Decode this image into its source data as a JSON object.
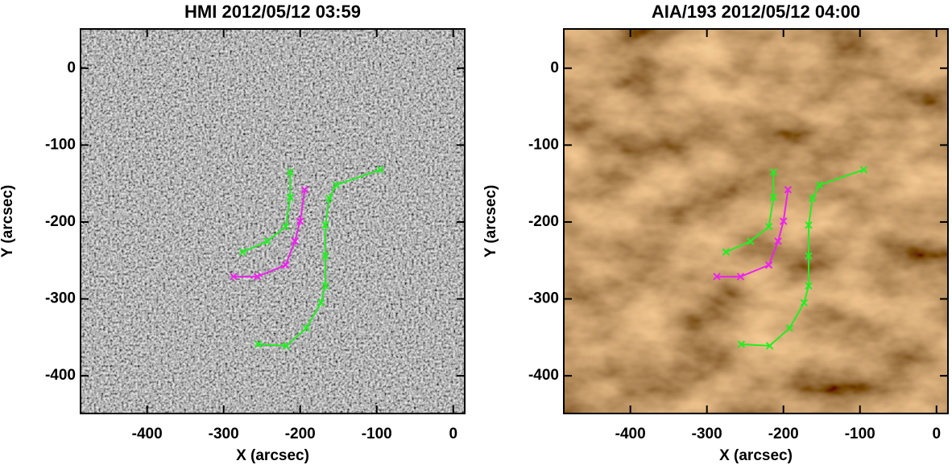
{
  "chart_data": [
    {
      "type": "line",
      "title": "HMI 2012/05/12 03:59",
      "xlabel": "X (arcsec)",
      "ylabel": "Y (arcsec)",
      "background": "#8a8a8a",
      "xlim": [
        -487,
        15
      ],
      "ylim": [
        -449,
        51
      ],
      "xticks": [
        -400,
        -300,
        -200,
        -100,
        0
      ],
      "yticks": [
        0,
        -100,
        -200,
        -300,
        -400
      ],
      "series": [
        {
          "color": "#22ee22",
          "x": [
            -213,
            -213,
            -219,
            -243,
            -275
          ],
          "values": [
            -135,
            -168,
            -206,
            -225,
            -239
          ]
        },
        {
          "color": "#ee22ee",
          "x": [
            -194,
            -200,
            -207,
            -219,
            -256,
            -287
          ],
          "values": [
            -158,
            -199,
            -225,
            -256,
            -271,
            -271
          ]
        },
        {
          "color": "#22ee22",
          "x": [
            -95,
            -153,
            -162,
            -167,
            -167,
            -167,
            -173,
            -192,
            -218,
            -255
          ],
          "values": [
            -132,
            -152,
            -169,
            -204,
            -244,
            -283,
            -305,
            -338,
            -361,
            -359
          ]
        }
      ]
    },
    {
      "type": "line",
      "title": "AIA/193 2012/05/12 04:00",
      "xlabel": "X (arcsec)",
      "ylabel": "Y (arcsec)",
      "background": "#9a6430",
      "xlim": [
        -487,
        15
      ],
      "ylim": [
        -449,
        51
      ],
      "xticks": [
        -400,
        -300,
        -200,
        -100,
        0
      ],
      "yticks": [
        0,
        -100,
        -200,
        -300,
        -400
      ],
      "series": [
        {
          "color": "#22ee22",
          "x": [
            -213,
            -213,
            -219,
            -243,
            -275
          ],
          "values": [
            -135,
            -168,
            -206,
            -225,
            -239
          ]
        },
        {
          "color": "#ee22ee",
          "x": [
            -194,
            -200,
            -207,
            -219,
            -256,
            -287
          ],
          "values": [
            -158,
            -199,
            -225,
            -256,
            -271,
            -271
          ]
        },
        {
          "color": "#22ee22",
          "x": [
            -95,
            -153,
            -162,
            -167,
            -167,
            -167,
            -173,
            -192,
            -218,
            -255
          ],
          "values": [
            -132,
            -152,
            -169,
            -204,
            -244,
            -283,
            -305,
            -338,
            -361,
            -359
          ]
        }
      ]
    }
  ]
}
